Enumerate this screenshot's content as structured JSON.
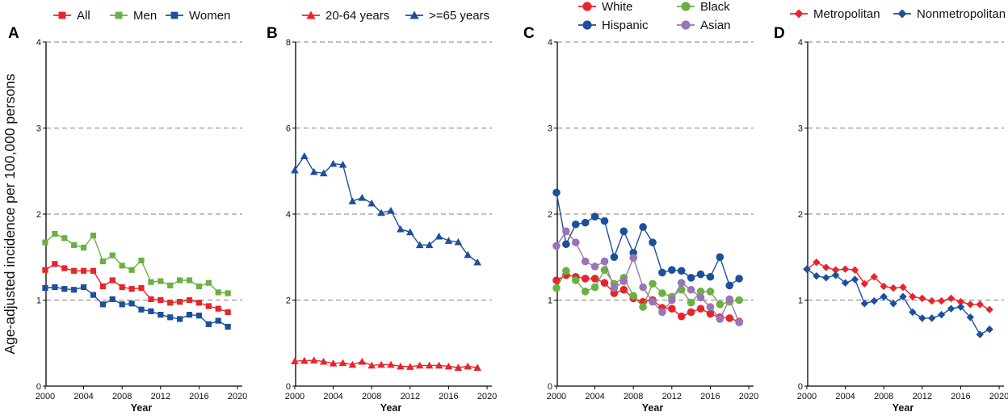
{
  "figure": {
    "ylabel": "Age-adjusted incidence per 100,000 persons"
  },
  "chart_data": [
    {
      "panel": "A",
      "type": "line",
      "xlabel": "Year",
      "ylabel": "Age-adjusted incidence per 100,000 persons",
      "xlim": [
        1999.5,
        2020.5
      ],
      "ylim": [
        0,
        4
      ],
      "xticks": [
        "2000",
        "2004",
        "2008",
        "2012",
        "2016",
        "2020"
      ],
      "yticks": [
        "0",
        "1",
        "2",
        "3",
        "4"
      ],
      "grid": "dashed horizontal at 1, 2, 3, 4",
      "legend": "top",
      "x": [
        2000,
        2001,
        2002,
        2003,
        2004,
        2005,
        2006,
        2007,
        2008,
        2009,
        2010,
        2011,
        2012,
        2013,
        2014,
        2015,
        2016,
        2017,
        2018,
        2019
      ],
      "series": [
        {
          "name": "All",
          "color": "#e8242b",
          "marker": "square",
          "values": [
            1.35,
            1.42,
            1.37,
            1.34,
            1.34,
            1.34,
            1.16,
            1.23,
            1.15,
            1.13,
            1.14,
            1.01,
            1.0,
            0.97,
            0.98,
            1.0,
            0.97,
            0.93,
            0.9,
            0.86
          ]
        },
        {
          "name": "Men",
          "color": "#6ab043",
          "marker": "square",
          "values": [
            1.67,
            1.77,
            1.72,
            1.64,
            1.61,
            1.75,
            1.45,
            1.52,
            1.4,
            1.35,
            1.46,
            1.21,
            1.22,
            1.17,
            1.23,
            1.23,
            1.16,
            1.2,
            1.09,
            1.08
          ]
        },
        {
          "name": "Women",
          "color": "#1c4f9c",
          "marker": "square",
          "values": [
            1.14,
            1.15,
            1.13,
            1.12,
            1.15,
            1.06,
            0.95,
            1.01,
            0.95,
            0.96,
            0.89,
            0.87,
            0.83,
            0.8,
            0.78,
            0.83,
            0.82,
            0.72,
            0.76,
            0.69
          ]
        }
      ]
    },
    {
      "panel": "B",
      "type": "line",
      "xlabel": "Year",
      "xlim": [
        1999.5,
        2020.5
      ],
      "ylim": [
        0,
        8
      ],
      "xticks": [
        "2000",
        "2004",
        "2008",
        "2012",
        "2016",
        "2020"
      ],
      "yticks": [
        "0",
        "2",
        "4",
        "6",
        "8"
      ],
      "grid": "dashed horizontal at 2, 4, 6, 8",
      "legend": "top",
      "x": [
        2000,
        2001,
        2002,
        2003,
        2004,
        2005,
        2006,
        2007,
        2008,
        2009,
        2010,
        2011,
        2012,
        2013,
        2014,
        2015,
        2016,
        2017,
        2018,
        2019
      ],
      "series": [
        {
          "name": "20-64 years",
          "color": "#e8242b",
          "marker": "triangle",
          "values": [
            0.58,
            0.59,
            0.6,
            0.57,
            0.53,
            0.54,
            0.5,
            0.57,
            0.48,
            0.5,
            0.5,
            0.46,
            0.45,
            0.48,
            0.48,
            0.48,
            0.46,
            0.43,
            0.46,
            0.43
          ]
        },
        {
          "name": ">=65 years",
          "color": "#1c4f9c",
          "marker": "triangle",
          "values": [
            5.02,
            5.35,
            4.98,
            4.95,
            5.17,
            5.15,
            4.3,
            4.38,
            4.25,
            4.03,
            4.08,
            3.65,
            3.58,
            3.28,
            3.28,
            3.48,
            3.38,
            3.35,
            3.05,
            2.88
          ]
        }
      ]
    },
    {
      "panel": "C",
      "type": "line",
      "xlabel": "Year",
      "xlim": [
        1999.5,
        2020.5
      ],
      "ylim": [
        0,
        4
      ],
      "xticks": [
        "2000",
        "2004",
        "2008",
        "2012",
        "2016",
        "2020"
      ],
      "yticks": [
        "0",
        "1",
        "2",
        "3",
        "4"
      ],
      "grid": "dashed horizontal at 1, 2, 3, 4",
      "legend": "top",
      "x": [
        2000,
        2001,
        2002,
        2003,
        2004,
        2005,
        2006,
        2007,
        2008,
        2009,
        2010,
        2011,
        2012,
        2013,
        2014,
        2015,
        2016,
        2017,
        2018,
        2019
      ],
      "series": [
        {
          "name": "White",
          "color": "#e8242b",
          "marker": "circle",
          "values": [
            1.23,
            1.29,
            1.27,
            1.25,
            1.25,
            1.2,
            1.08,
            1.12,
            1.02,
            0.98,
            1.0,
            0.91,
            0.9,
            0.81,
            0.86,
            0.9,
            0.84,
            0.8,
            0.79,
            0.75
          ]
        },
        {
          "name": "Black",
          "color": "#6ab043",
          "marker": "circle",
          "values": [
            1.14,
            1.34,
            1.23,
            1.1,
            1.15,
            1.35,
            1.19,
            1.26,
            1.05,
            0.92,
            1.19,
            1.08,
            1.04,
            1.12,
            0.97,
            1.1,
            1.1,
            0.95,
            0.98,
            1.0
          ]
        },
        {
          "name": "Hispanic",
          "color": "#1c4f9c",
          "marker": "circle",
          "values": [
            2.25,
            1.65,
            1.88,
            1.9,
            1.97,
            1.92,
            1.5,
            1.8,
            1.55,
            1.85,
            1.67,
            1.32,
            1.35,
            1.34,
            1.26,
            1.3,
            1.27,
            1.5,
            1.17,
            1.25
          ]
        },
        {
          "name": "Asian",
          "color": "#9b74b7",
          "marker": "circle",
          "values": [
            1.63,
            1.8,
            1.67,
            1.45,
            1.39,
            1.45,
            1.14,
            1.22,
            1.49,
            1.15,
            0.98,
            0.86,
            1.0,
            1.2,
            1.12,
            1.03,
            0.92,
            0.78,
            1.01,
            0.74
          ]
        }
      ]
    },
    {
      "panel": "D",
      "type": "line",
      "xlabel": "Year",
      "xlim": [
        1999.5,
        2020.5
      ],
      "ylim": [
        0,
        4
      ],
      "xticks": [
        "2000",
        "2004",
        "2008",
        "2012",
        "2016",
        "2020"
      ],
      "yticks": [
        "0",
        "1",
        "2",
        "3",
        "4"
      ],
      "grid": "dashed horizontal at 1, 2, 3, 4",
      "legend": "top",
      "x": [
        2000,
        2001,
        2002,
        2003,
        2004,
        2005,
        2006,
        2007,
        2008,
        2009,
        2010,
        2011,
        2012,
        2013,
        2014,
        2015,
        2016,
        2017,
        2018,
        2019
      ],
      "series": [
        {
          "name": "Metropolitan",
          "color": "#e8242b",
          "marker": "diamond",
          "values": [
            1.36,
            1.44,
            1.38,
            1.35,
            1.36,
            1.35,
            1.19,
            1.27,
            1.16,
            1.14,
            1.15,
            1.04,
            1.02,
            0.99,
            0.99,
            1.02,
            0.98,
            0.95,
            0.95,
            0.89
          ]
        },
        {
          "name": "Nonmetropolitan",
          "color": "#1c4f9c",
          "marker": "diamond",
          "values": [
            1.36,
            1.28,
            1.26,
            1.29,
            1.2,
            1.24,
            0.96,
            0.99,
            1.04,
            0.96,
            1.04,
            0.86,
            0.79,
            0.79,
            0.83,
            0.9,
            0.92,
            0.8,
            0.6,
            0.66
          ]
        }
      ]
    }
  ]
}
